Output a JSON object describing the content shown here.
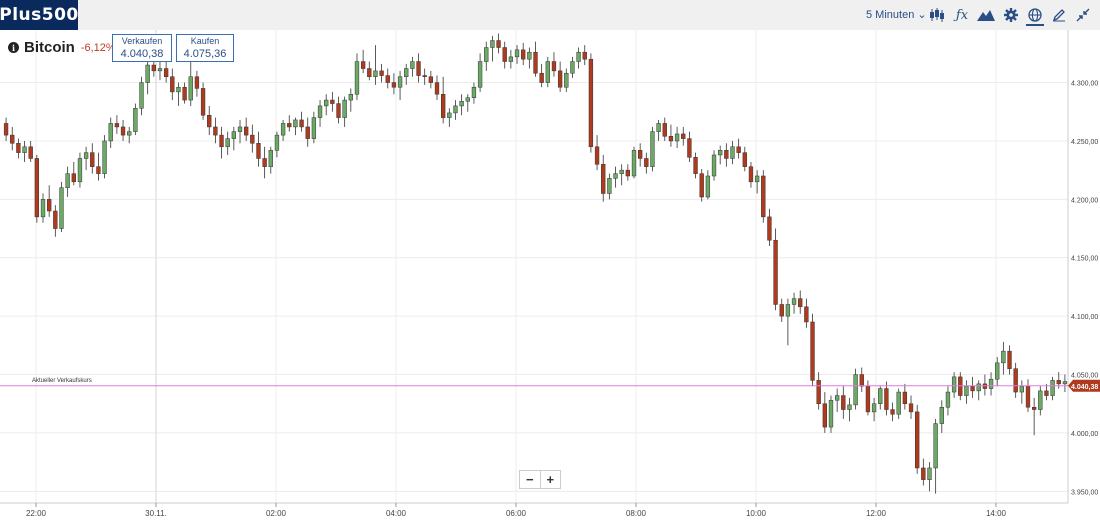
{
  "app": {
    "logo": "Plus500"
  },
  "toolbar": {
    "interval_label": "5 Minuten",
    "icons": [
      "candlestick-icon",
      "function-icon",
      "mountain-chart-icon",
      "gear-icon",
      "globe-icon",
      "draw-pencil-icon",
      "collapse-icon"
    ]
  },
  "instrument": {
    "name": "Bitcoin",
    "change": "-6,12%",
    "sell_label": "Verkaufen",
    "sell_value": "4.040,38",
    "buy_label": "Kaufen",
    "buy_value": "4.075,36"
  },
  "colors": {
    "up": "#6aaa64",
    "down": "#b03a1e",
    "current_line": "#e07be0",
    "brand": "#0a2a5e",
    "accent": "#2a4f86"
  },
  "chart_data": {
    "type": "candlestick",
    "title": "",
    "xlabel": "",
    "ylabel": "",
    "y_ticks": [
      "4.300,00",
      "4.250,00",
      "4.200,00",
      "4.150,00",
      "4.100,00",
      "4.050,00",
      "4.000,00",
      "3.950,00"
    ],
    "y_tick_values": [
      4300,
      4250,
      4200,
      4150,
      4100,
      4050,
      4000,
      3950
    ],
    "x_ticks": [
      "22:00",
      "30.11.",
      "02:00",
      "04:00",
      "06:00",
      "08:00",
      "10:00",
      "12:00",
      "14:00"
    ],
    "x_tick_hours": [
      22,
      24,
      26,
      28,
      30,
      32,
      34,
      36,
      38
    ],
    "x_start_hour": 21.4,
    "ylim": [
      3940,
      4345
    ],
    "current_price": {
      "label": "Aktueller Verkaufskurs",
      "value": 4040.38,
      "value_label": "4.040,38"
    },
    "crosshair_hour": 24,
    "ohlc": [
      [
        4265,
        4270,
        4250,
        4255
      ],
      [
        4255,
        4262,
        4242,
        4248
      ],
      [
        4248,
        4252,
        4235,
        4240
      ],
      [
        4240,
        4250,
        4232,
        4245
      ],
      [
        4245,
        4250,
        4232,
        4235
      ],
      [
        4235,
        4238,
        4180,
        4185
      ],
      [
        4185,
        4205,
        4180,
        4200
      ],
      [
        4200,
        4212,
        4185,
        4190
      ],
      [
        4190,
        4195,
        4168,
        4175
      ],
      [
        4175,
        4215,
        4172,
        4210
      ],
      [
        4210,
        4228,
        4202,
        4222
      ],
      [
        4222,
        4232,
        4212,
        4215
      ],
      [
        4215,
        4240,
        4210,
        4235
      ],
      [
        4235,
        4245,
        4225,
        4240
      ],
      [
        4240,
        4248,
        4222,
        4228
      ],
      [
        4228,
        4240,
        4216,
        4222
      ],
      [
        4222,
        4255,
        4218,
        4250
      ],
      [
        4250,
        4270,
        4244,
        4265
      ],
      [
        4265,
        4272,
        4256,
        4262
      ],
      [
        4262,
        4268,
        4250,
        4255
      ],
      [
        4255,
        4262,
        4248,
        4258
      ],
      [
        4258,
        4282,
        4255,
        4278
      ],
      [
        4278,
        4305,
        4272,
        4300
      ],
      [
        4300,
        4320,
        4290,
        4315
      ],
      [
        4315,
        4322,
        4305,
        4310
      ],
      [
        4310,
        4318,
        4302,
        4312
      ],
      [
        4312,
        4318,
        4300,
        4305
      ],
      [
        4305,
        4312,
        4285,
        4292
      ],
      [
        4292,
        4300,
        4280,
        4296
      ],
      [
        4296,
        4300,
        4282,
        4285
      ],
      [
        4285,
        4320,
        4280,
        4305
      ],
      [
        4305,
        4310,
        4288,
        4295
      ],
      [
        4295,
        4300,
        4268,
        4272
      ],
      [
        4272,
        4280,
        4255,
        4262
      ],
      [
        4262,
        4270,
        4248,
        4255
      ],
      [
        4255,
        4262,
        4235,
        4245
      ],
      [
        4245,
        4258,
        4238,
        4252
      ],
      [
        4252,
        4262,
        4242,
        4258
      ],
      [
        4258,
        4268,
        4248,
        4262
      ],
      [
        4262,
        4270,
        4250,
        4255
      ],
      [
        4255,
        4264,
        4240,
        4248
      ],
      [
        4248,
        4258,
        4228,
        4235
      ],
      [
        4235,
        4245,
        4218,
        4228
      ],
      [
        4228,
        4245,
        4222,
        4242
      ],
      [
        4242,
        4258,
        4236,
        4255
      ],
      [
        4255,
        4268,
        4250,
        4265
      ],
      [
        4265,
        4272,
        4258,
        4262
      ],
      [
        4262,
        4270,
        4255,
        4268
      ],
      [
        4268,
        4275,
        4258,
        4262
      ],
      [
        4262,
        4270,
        4245,
        4252
      ],
      [
        4252,
        4275,
        4248,
        4270
      ],
      [
        4270,
        4285,
        4262,
        4280
      ],
      [
        4280,
        4290,
        4272,
        4285
      ],
      [
        4285,
        4292,
        4275,
        4282
      ],
      [
        4282,
        4288,
        4265,
        4270
      ],
      [
        4270,
        4288,
        4262,
        4285
      ],
      [
        4285,
        4295,
        4275,
        4290
      ],
      [
        4290,
        4325,
        4285,
        4318
      ],
      [
        4318,
        4328,
        4308,
        4312
      ],
      [
        4312,
        4318,
        4302,
        4305
      ],
      [
        4305,
        4332,
        4298,
        4310
      ],
      [
        4310,
        4316,
        4300,
        4306
      ],
      [
        4306,
        4312,
        4295,
        4300
      ],
      [
        4300,
        4308,
        4290,
        4296
      ],
      [
        4296,
        4310,
        4285,
        4305
      ],
      [
        4305,
        4316,
        4298,
        4312
      ],
      [
        4312,
        4322,
        4305,
        4318
      ],
      [
        4318,
        4325,
        4300,
        4306
      ],
      [
        4306,
        4312,
        4298,
        4305
      ],
      [
        4305,
        4310,
        4295,
        4300
      ],
      [
        4300,
        4306,
        4285,
        4290
      ],
      [
        4290,
        4305,
        4265,
        4270
      ],
      [
        4270,
        4278,
        4262,
        4274
      ],
      [
        4274,
        4285,
        4268,
        4280
      ],
      [
        4280,
        4290,
        4272,
        4284
      ],
      [
        4284,
        4290,
        4275,
        4287
      ],
      [
        4287,
        4300,
        4282,
        4296
      ],
      [
        4296,
        4325,
        4292,
        4318
      ],
      [
        4318,
        4335,
        4310,
        4330
      ],
      [
        4330,
        4340,
        4318,
        4336
      ],
      [
        4336,
        4342,
        4325,
        4330
      ],
      [
        4330,
        4335,
        4312,
        4318
      ],
      [
        4318,
        4328,
        4312,
        4322
      ],
      [
        4322,
        4332,
        4316,
        4328
      ],
      [
        4328,
        4334,
        4315,
        4320
      ],
      [
        4320,
        4330,
        4312,
        4326
      ],
      [
        4326,
        4335,
        4305,
        4308
      ],
      [
        4308,
        4316,
        4296,
        4300
      ],
      [
        4300,
        4322,
        4296,
        4318
      ],
      [
        4318,
        4326,
        4305,
        4310
      ],
      [
        4310,
        4318,
        4292,
        4296
      ],
      [
        4296,
        4312,
        4292,
        4308
      ],
      [
        4308,
        4322,
        4304,
        4318
      ],
      [
        4318,
        4330,
        4312,
        4326
      ],
      [
        4326,
        4332,
        4315,
        4320
      ],
      [
        4320,
        4325,
        4240,
        4245
      ],
      [
        4245,
        4255,
        4225,
        4230
      ],
      [
        4230,
        4238,
        4198,
        4205
      ],
      [
        4205,
        4222,
        4200,
        4218
      ],
      [
        4218,
        4228,
        4210,
        4222
      ],
      [
        4222,
        4230,
        4212,
        4225
      ],
      [
        4225,
        4230,
        4216,
        4220
      ],
      [
        4220,
        4245,
        4218,
        4242
      ],
      [
        4242,
        4248,
        4228,
        4235
      ],
      [
        4235,
        4240,
        4222,
        4228
      ],
      [
        4228,
        4262,
        4224,
        4258
      ],
      [
        4258,
        4268,
        4250,
        4265
      ],
      [
        4265,
        4270,
        4250,
        4254
      ],
      [
        4254,
        4264,
        4245,
        4250
      ],
      [
        4250,
        4262,
        4244,
        4256
      ],
      [
        4256,
        4262,
        4246,
        4252
      ],
      [
        4252,
        4258,
        4232,
        4236
      ],
      [
        4236,
        4240,
        4218,
        4222
      ],
      [
        4222,
        4226,
        4198,
        4202
      ],
      [
        4202,
        4225,
        4200,
        4220
      ],
      [
        4220,
        4242,
        4216,
        4238
      ],
      [
        4238,
        4246,
        4230,
        4242
      ],
      [
        4242,
        4248,
        4228,
        4235
      ],
      [
        4235,
        4250,
        4230,
        4245
      ],
      [
        4245,
        4252,
        4235,
        4240
      ],
      [
        4240,
        4245,
        4224,
        4228
      ],
      [
        4228,
        4232,
        4210,
        4215
      ],
      [
        4215,
        4225,
        4205,
        4220
      ],
      [
        4220,
        4225,
        4180,
        4185
      ],
      [
        4185,
        4192,
        4160,
        4165
      ],
      [
        4165,
        4175,
        4105,
        4110
      ],
      [
        4110,
        4115,
        4095,
        4100
      ],
      [
        4100,
        4115,
        4075,
        4110
      ],
      [
        4110,
        4120,
        4102,
        4115
      ],
      [
        4115,
        4122,
        4102,
        4108
      ],
      [
        4108,
        4115,
        4090,
        4095
      ],
      [
        4095,
        4102,
        4040,
        4045
      ],
      [
        4045,
        4052,
        4020,
        4025
      ],
      [
        4025,
        4035,
        4000,
        4005
      ],
      [
        4005,
        4032,
        4000,
        4028
      ],
      [
        4028,
        4038,
        4018,
        4032
      ],
      [
        4032,
        4040,
        4012,
        4020
      ],
      [
        4020,
        4030,
        4010,
        4024
      ],
      [
        4024,
        4055,
        4020,
        4050
      ],
      [
        4050,
        4056,
        4035,
        4040
      ],
      [
        4040,
        4045,
        4015,
        4018
      ],
      [
        4018,
        4030,
        4010,
        4025
      ],
      [
        4025,
        4040,
        4020,
        4038
      ],
      [
        4038,
        4044,
        4015,
        4020
      ],
      [
        4020,
        4026,
        4010,
        4016
      ],
      [
        4016,
        4038,
        4012,
        4035
      ],
      [
        4035,
        4042,
        4020,
        4025
      ],
      [
        4025,
        4032,
        4012,
        4018
      ],
      [
        4018,
        4024,
        3965,
        3970
      ],
      [
        3970,
        3978,
        3955,
        3960
      ],
      [
        3960,
        3975,
        3950,
        3970
      ],
      [
        3970,
        4012,
        3948,
        4008
      ],
      [
        4008,
        4028,
        4000,
        4022
      ],
      [
        4022,
        4040,
        4015,
        4035
      ],
      [
        4035,
        4052,
        4030,
        4048
      ],
      [
        4048,
        4052,
        4028,
        4032
      ],
      [
        4032,
        4045,
        4025,
        4040
      ],
      [
        4040,
        4048,
        4030,
        4036
      ],
      [
        4036,
        4045,
        4028,
        4042
      ],
      [
        4042,
        4050,
        4032,
        4038
      ],
      [
        4038,
        4052,
        4032,
        4046
      ],
      [
        4046,
        4065,
        4040,
        4060
      ],
      [
        4060,
        4078,
        4050,
        4070
      ],
      [
        4070,
        4075,
        4050,
        4055
      ],
      [
        4055,
        4060,
        4030,
        4035
      ],
      [
        4035,
        4045,
        4025,
        4040
      ],
      [
        4040,
        4046,
        4018,
        4022
      ],
      [
        4022,
        4030,
        3998,
        4020
      ],
      [
        4020,
        4040,
        4015,
        4036
      ],
      [
        4036,
        4042,
        4028,
        4032
      ],
      [
        4032,
        4048,
        4028,
        4045
      ],
      [
        4045,
        4052,
        4038,
        4042
      ],
      [
        4042,
        4050,
        4035,
        4044
      ]
    ]
  }
}
